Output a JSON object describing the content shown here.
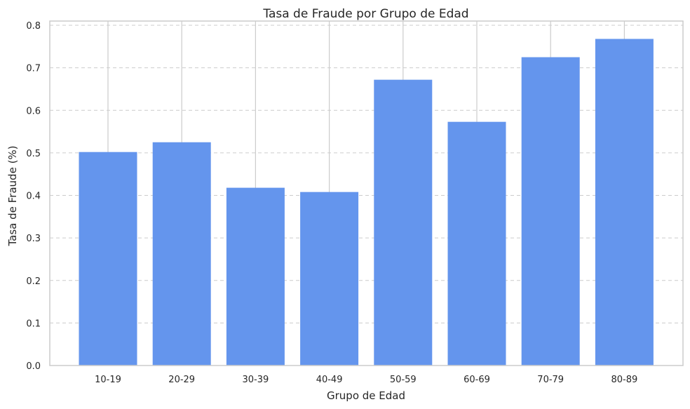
{
  "chart_data": {
    "type": "bar",
    "title": "Tasa de Fraude por Grupo de Edad",
    "xlabel": "Grupo de Edad",
    "ylabel": "Tasa de Fraude (%)",
    "categories": [
      "10-19",
      "20-29",
      "30-39",
      "40-49",
      "50-59",
      "60-69",
      "70-79",
      "80-89"
    ],
    "values": [
      0.502,
      0.525,
      0.418,
      0.408,
      0.672,
      0.573,
      0.725,
      0.768
    ],
    "ylim": [
      0,
      0.81
    ],
    "yticks": [
      "0.0",
      "0.1",
      "0.2",
      "0.3",
      "0.4",
      "0.5",
      "0.6",
      "0.7",
      "0.8"
    ],
    "grid": {
      "y": "dashed",
      "x": "solid"
    },
    "colors": {
      "bar": "#6495ED",
      "grid": "#cccccc",
      "spine": "#cccccc",
      "text": "#262626"
    }
  }
}
